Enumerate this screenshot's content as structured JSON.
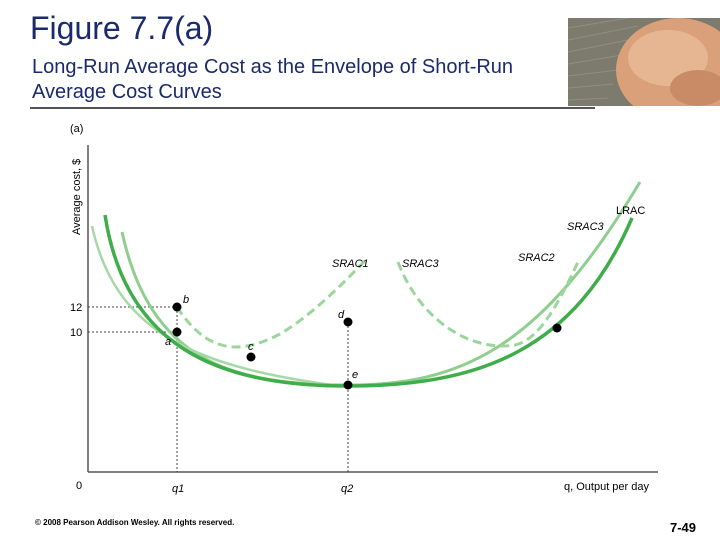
{
  "slide": {
    "title": "Figure 7.7(a)",
    "subtitle": "Long-Run Average Cost as the Envelope of Short-Run Average Cost Curves",
    "footer": "© 2008 Pearson Addison Wesley. All rights reserved.",
    "slide_number": "7-49"
  },
  "figure": {
    "panel_label": "(a)",
    "y_axis_label": "Average cost, $",
    "x_axis_label": "q, Output per day",
    "origin_label": "0",
    "y_ticks": [
      "12",
      "10"
    ],
    "x_ticks": [
      "q1",
      "q2"
    ],
    "curve_labels": {
      "lrac": "LRAC",
      "srac1": "SRAC1",
      "srac2": "SRAC2",
      "srac3_mid": "SRAC3",
      "srac3_right": "SRAC3"
    },
    "point_labels": {
      "a": "a",
      "b": "b",
      "c": "c",
      "d": "d",
      "e": "e"
    },
    "colors": {
      "lrac": "#3fae4a",
      "srac_light": "#8fce8f",
      "srac_dashed": "#9dd69c",
      "axis": "#555555",
      "title": "#1a2a6c"
    }
  }
}
